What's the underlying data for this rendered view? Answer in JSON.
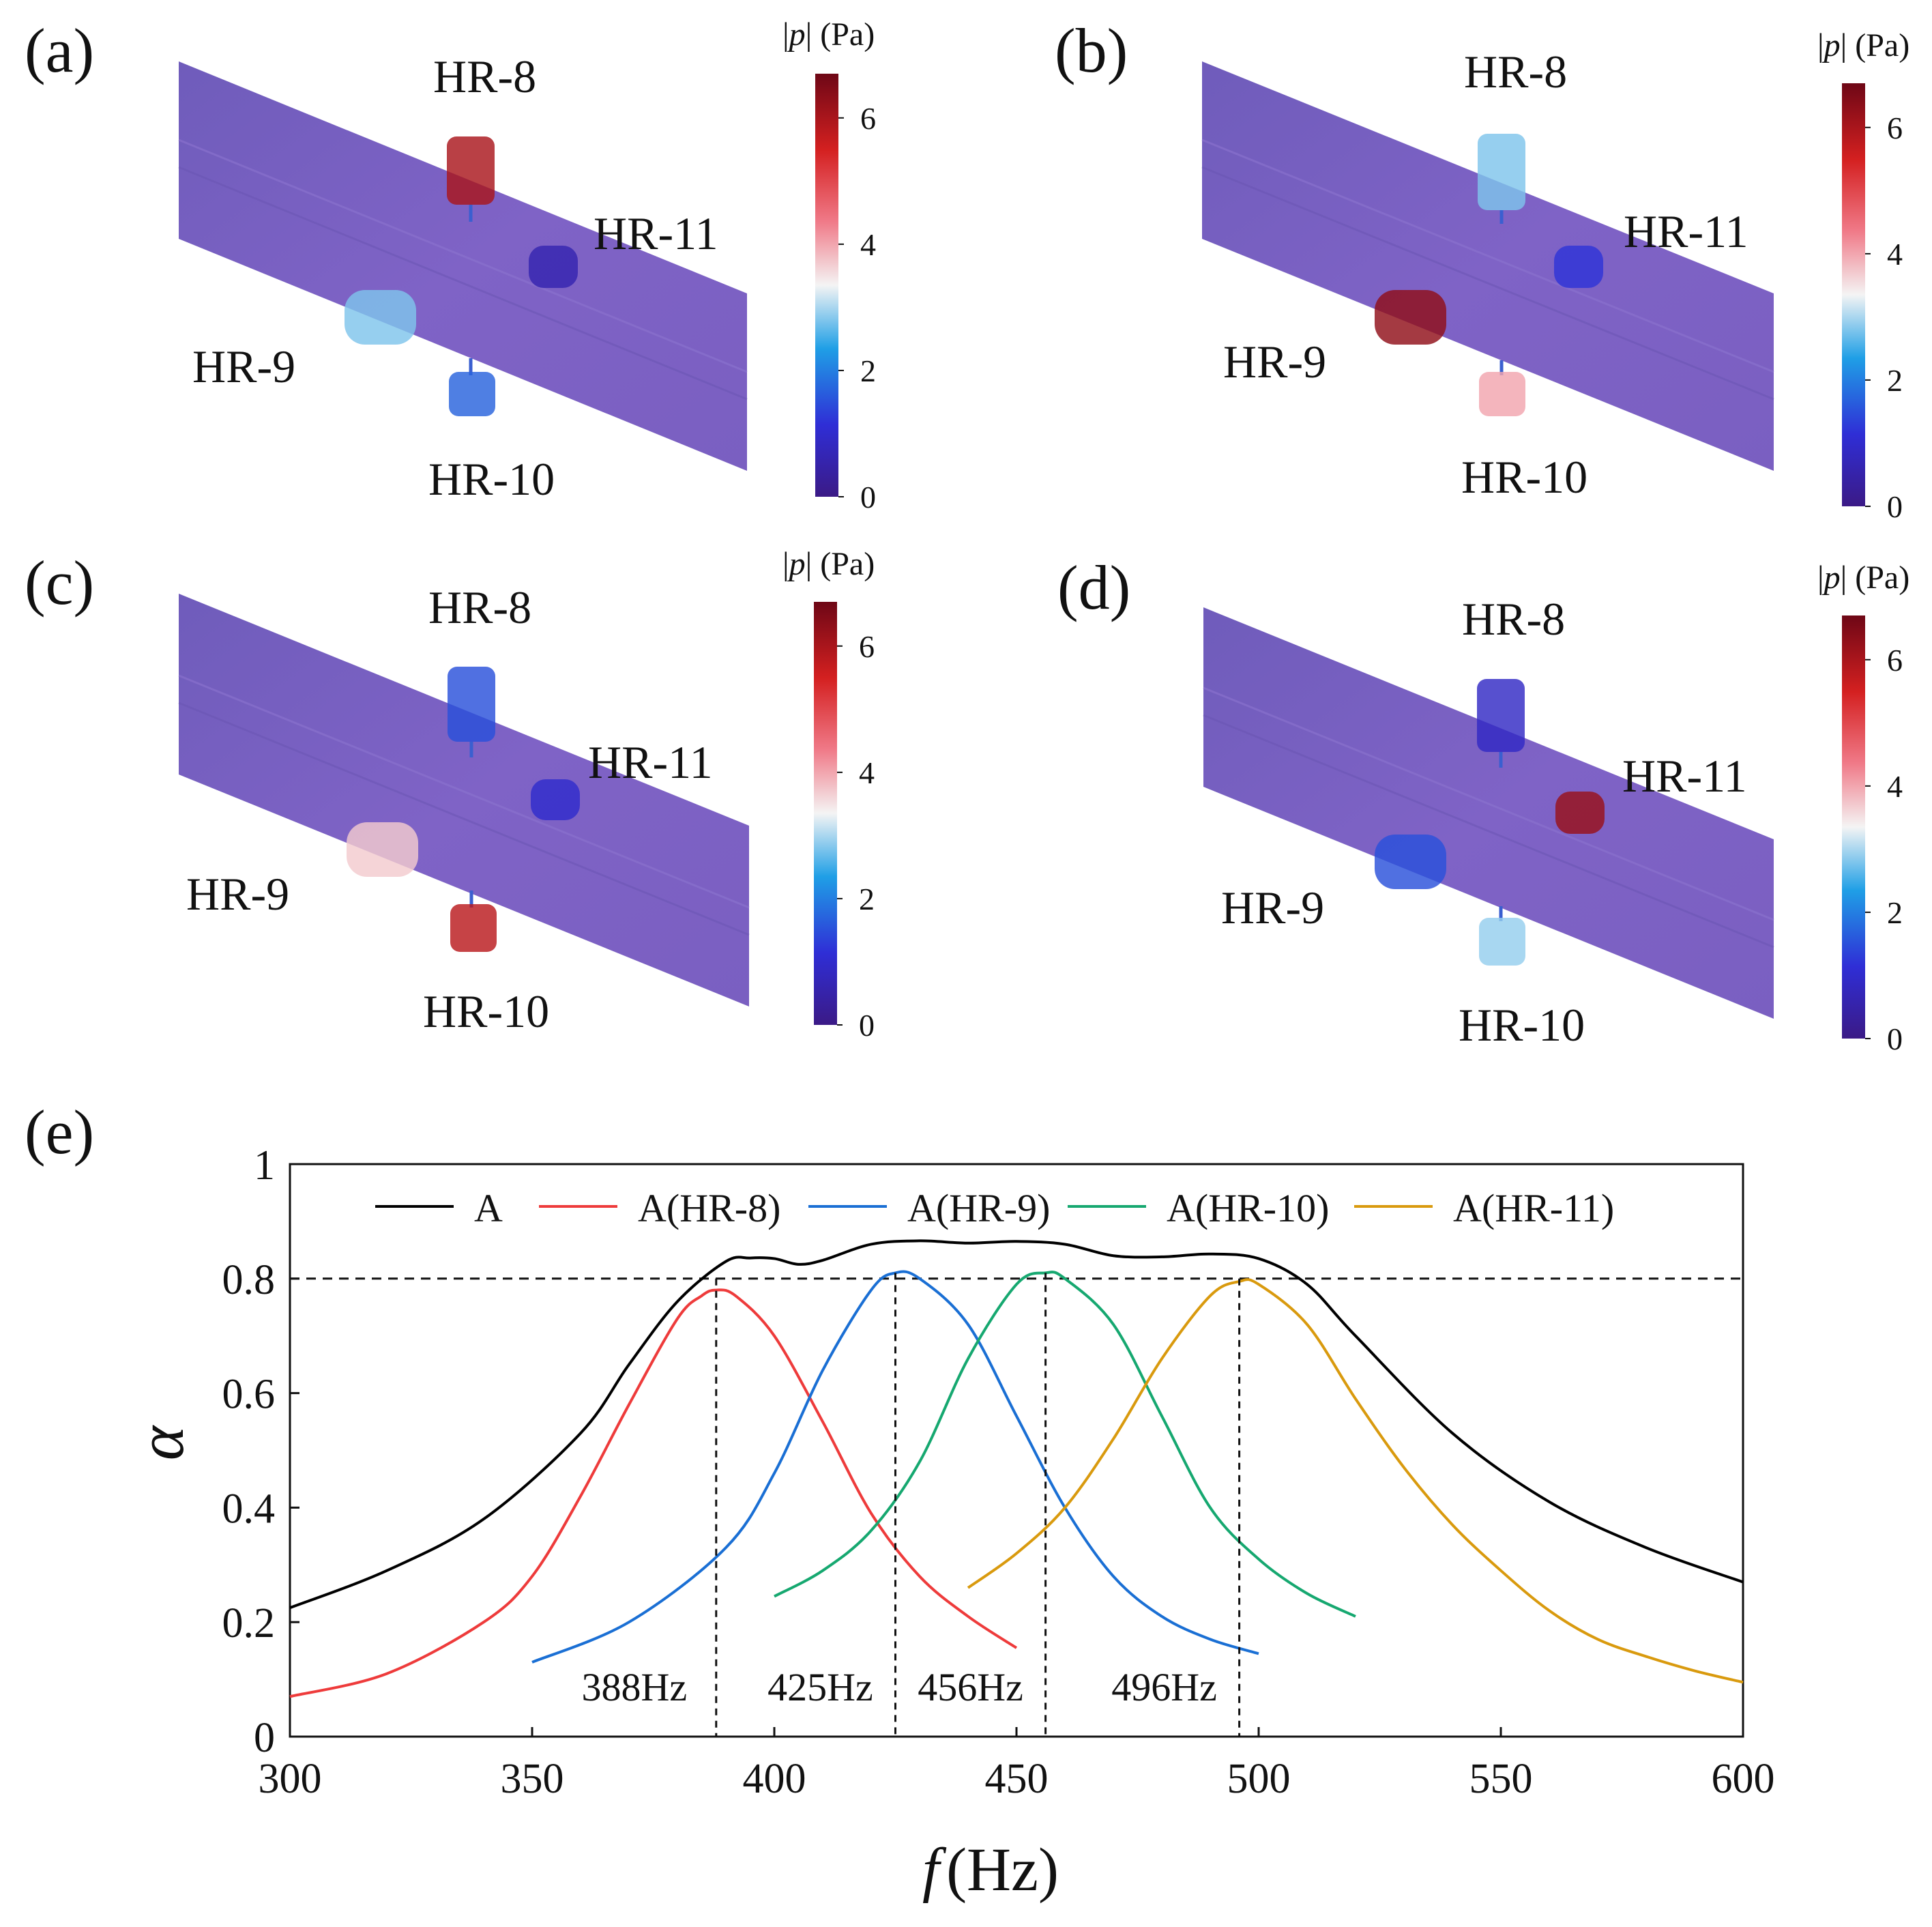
{
  "panels": [
    {
      "label": "(a)",
      "colorbar": {
        "title_p": "p",
        "title_unit": "(Pa)",
        "ticks": [
          "0",
          "2",
          "4",
          "6"
        ]
      },
      "resonators": [
        {
          "name": "HR-8",
          "pressure": 6.0
        },
        {
          "name": "HR-9",
          "pressure": 2.8
        },
        {
          "name": "HR-10",
          "pressure": 1.7
        },
        {
          "name": "HR-11",
          "pressure": 0.6
        }
      ]
    },
    {
      "label": "(b)",
      "colorbar": {
        "title_p": "p",
        "title_unit": "(Pa)",
        "ticks": [
          "0",
          "2",
          "4",
          "6"
        ]
      },
      "resonators": [
        {
          "name": "HR-8",
          "pressure": 2.8
        },
        {
          "name": "HR-9",
          "pressure": 6.3
        },
        {
          "name": "HR-10",
          "pressure": 4.0
        },
        {
          "name": "HR-11",
          "pressure": 1.2
        }
      ]
    },
    {
      "label": "(c)",
      "colorbar": {
        "title_p": "p",
        "title_unit": "(Pa)",
        "ticks": [
          "0",
          "2",
          "4",
          "6"
        ]
      },
      "resonators": [
        {
          "name": "HR-8",
          "pressure": 1.5
        },
        {
          "name": "HR-9",
          "pressure": 3.7
        },
        {
          "name": "HR-10",
          "pressure": 5.8
        },
        {
          "name": "HR-11",
          "pressure": 1.0
        }
      ]
    },
    {
      "label": "(d)",
      "colorbar": {
        "title_p": "p",
        "title_unit": "(Pa)",
        "ticks": [
          "0",
          "2",
          "4",
          "6"
        ]
      },
      "resonators": [
        {
          "name": "HR-8",
          "pressure": 0.9
        },
        {
          "name": "HR-9",
          "pressure": 1.5
        },
        {
          "name": "HR-10",
          "pressure": 2.9
        },
        {
          "name": "HR-11",
          "pressure": 6.2
        }
      ]
    }
  ],
  "chart_data": {
    "label": "(e)",
    "type": "line",
    "title": "",
    "xlabel_italic": "f",
    "xlabel_unit": "(Hz)",
    "ylabel": "α",
    "xlim": [
      300,
      600
    ],
    "ylim": [
      0,
      1
    ],
    "x_ticks": [
      "300",
      "350",
      "400",
      "450",
      "500",
      "550",
      "600"
    ],
    "y_ticks": [
      "0",
      "0.2",
      "0.4",
      "0.6",
      "0.8",
      "1"
    ],
    "threshold": 0.8,
    "peak_markers": [
      {
        "f": 388,
        "label": "388Hz"
      },
      {
        "f": 425,
        "label": "425Hz"
      },
      {
        "f": 456,
        "label": "456Hz"
      },
      {
        "f": 496,
        "label": "496Hz"
      }
    ],
    "series": [
      {
        "name": "A",
        "color": "#000000",
        "x": [
          300,
          320,
          340,
          360,
          370,
          380,
          390,
          395,
          400,
          405,
          410,
          420,
          430,
          440,
          450,
          460,
          470,
          480,
          490,
          500,
          510,
          520,
          540,
          560,
          580,
          600
        ],
        "y": [
          0.225,
          0.29,
          0.38,
          0.53,
          0.65,
          0.76,
          0.83,
          0.836,
          0.835,
          0.825,
          0.832,
          0.86,
          0.866,
          0.862,
          0.865,
          0.86,
          0.84,
          0.838,
          0.843,
          0.835,
          0.79,
          0.7,
          0.53,
          0.41,
          0.33,
          0.27
        ]
      },
      {
        "name": "A(HR-8)",
        "color": "#ee3b3b",
        "x": [
          300,
          320,
          340,
          350,
          360,
          370,
          380,
          385,
          388,
          392,
          400,
          410,
          420,
          430,
          440,
          450
        ],
        "y": [
          0.07,
          0.11,
          0.2,
          0.28,
          0.42,
          0.58,
          0.73,
          0.77,
          0.78,
          0.77,
          0.7,
          0.55,
          0.39,
          0.28,
          0.21,
          0.155
        ]
      },
      {
        "name": "A(HR-9)",
        "color": "#1a6fd4",
        "x": [
          350,
          370,
          390,
          400,
          410,
          420,
          425,
          430,
          440,
          450,
          460,
          470,
          480,
          490,
          500
        ],
        "y": [
          0.13,
          0.2,
          0.33,
          0.46,
          0.64,
          0.78,
          0.81,
          0.8,
          0.72,
          0.56,
          0.4,
          0.28,
          0.21,
          0.17,
          0.145
        ]
      },
      {
        "name": "A(HR-10)",
        "color": "#16a870",
        "x": [
          400,
          410,
          420,
          430,
          440,
          450,
          456,
          460,
          470,
          480,
          490,
          500,
          510,
          520
        ],
        "y": [
          0.245,
          0.29,
          0.36,
          0.48,
          0.66,
          0.79,
          0.81,
          0.8,
          0.72,
          0.56,
          0.4,
          0.31,
          0.25,
          0.21
        ]
      },
      {
        "name": "A(HR-11)",
        "color": "#d99a0e",
        "x": [
          440,
          450,
          460,
          470,
          480,
          490,
          496,
          500,
          510,
          520,
          530,
          540,
          550,
          560,
          570,
          580,
          590,
          600
        ],
        "y": [
          0.26,
          0.32,
          0.4,
          0.52,
          0.66,
          0.77,
          0.795,
          0.79,
          0.72,
          0.59,
          0.47,
          0.37,
          0.29,
          0.22,
          0.17,
          0.14,
          0.115,
          0.095
        ]
      }
    ]
  }
}
